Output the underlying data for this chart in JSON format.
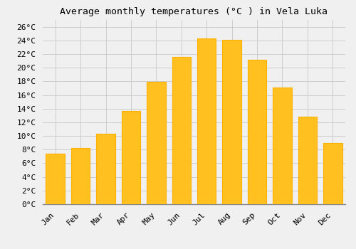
{
  "title": "Average monthly temperatures (°C ) in Vela Luka",
  "months": [
    "Jan",
    "Feb",
    "Mar",
    "Apr",
    "May",
    "Jun",
    "Jul",
    "Aug",
    "Sep",
    "Oct",
    "Nov",
    "Dec"
  ],
  "values": [
    7.4,
    8.2,
    10.3,
    13.7,
    17.9,
    21.6,
    24.3,
    24.1,
    21.2,
    17.1,
    12.8,
    9.0
  ],
  "bar_color": "#FFC020",
  "bar_edge_color": "#FFB000",
  "ylim": [
    0,
    27
  ],
  "yticks": [
    0,
    2,
    4,
    6,
    8,
    10,
    12,
    14,
    16,
    18,
    20,
    22,
    24,
    26
  ],
  "background_color": "#F0F0F0",
  "grid_color": "#CCCCCC",
  "title_fontsize": 9.5,
  "tick_fontsize": 8,
  "font_family": "monospace"
}
